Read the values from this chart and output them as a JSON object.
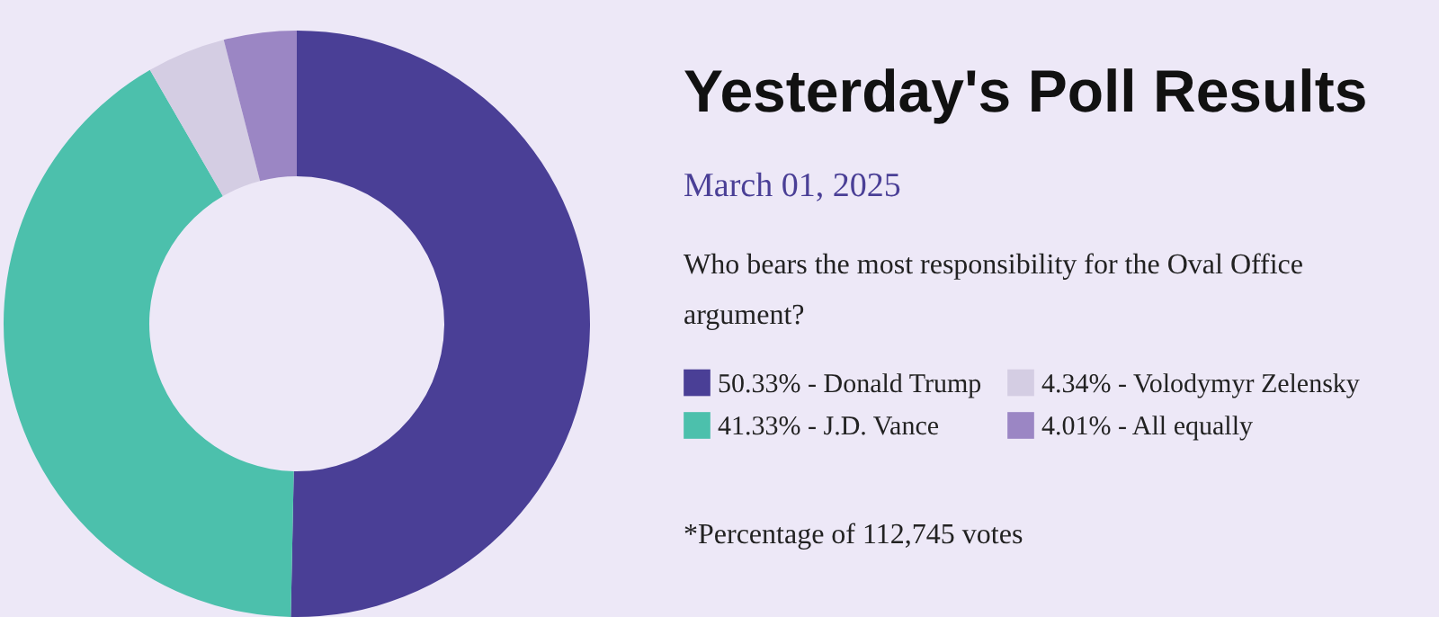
{
  "chart_data": {
    "type": "donut",
    "title": "Yesterday's Poll Results",
    "subtitle": "March 01, 2025",
    "annotations": [
      "Who bears the most responsibility for the Oval Office argument?",
      "*Percentage of 112,745 votes"
    ],
    "categories": [
      "Donald Trump",
      "J.D. Vance",
      "Volodymyr Zelensky",
      "All equally"
    ],
    "values": [
      50.33,
      41.33,
      4.34,
      4.01
    ],
    "value_labels": [
      "50.33%",
      "41.33%",
      "4.34%",
      "4.01%"
    ],
    "colors": [
      "#4a3f96",
      "#4cc0ac",
      "#d4cde3",
      "#9b86c4"
    ],
    "legend": "right"
  }
}
